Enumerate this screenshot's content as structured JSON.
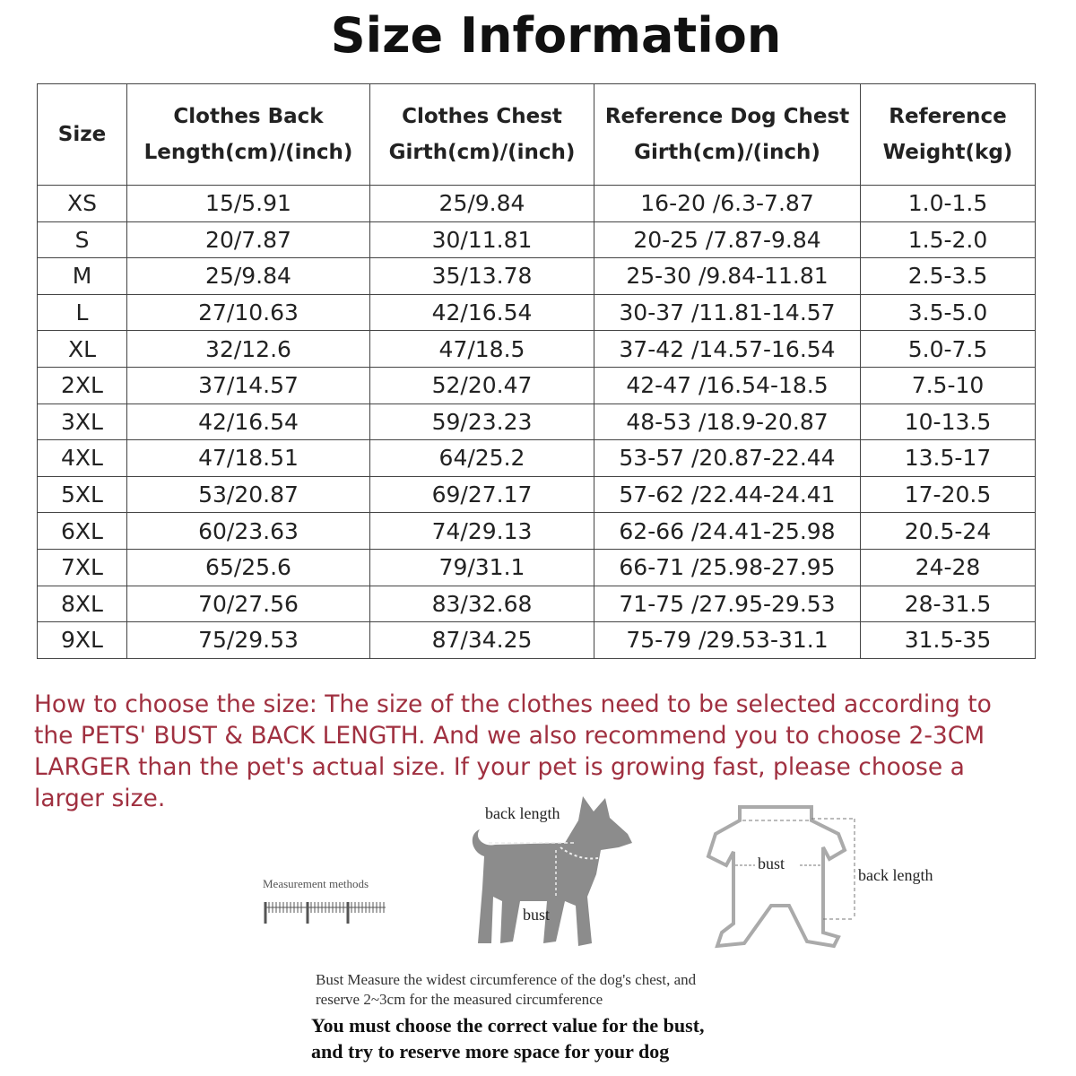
{
  "title": "Size Information",
  "table": {
    "headers": [
      [
        "Size"
      ],
      [
        "Clothes Back",
        "Length(cm)/(inch)"
      ],
      [
        "Clothes Chest",
        "Girth(cm)/(inch)"
      ],
      [
        "Reference Dog Chest",
        "Girth(cm)/(inch)"
      ],
      [
        "Reference",
        "Weight(kg)"
      ]
    ],
    "rows": [
      [
        "XS",
        "15/5.91",
        "25/9.84",
        "16-20 /6.3-7.87",
        "1.0-1.5"
      ],
      [
        "S",
        "20/7.87",
        "30/11.81",
        "20-25 /7.87-9.84",
        "1.5-2.0"
      ],
      [
        "M",
        "25/9.84",
        "35/13.78",
        "25-30 /9.84-11.81",
        "2.5-3.5"
      ],
      [
        "L",
        "27/10.63",
        "42/16.54",
        "30-37 /11.81-14.57",
        "3.5-5.0"
      ],
      [
        "XL",
        "32/12.6",
        "47/18.5",
        "37-42 /14.57-16.54",
        "5.0-7.5"
      ],
      [
        "2XL",
        "37/14.57",
        "52/20.47",
        "42-47 /16.54-18.5",
        "7.5-10"
      ],
      [
        "3XL",
        "42/16.54",
        "59/23.23",
        "48-53 /18.9-20.87",
        "10-13.5"
      ],
      [
        "4XL",
        "47/18.51",
        "64/25.2",
        "53-57 /20.87-22.44",
        "13.5-17"
      ],
      [
        "5XL",
        "53/20.87",
        "69/27.17",
        "57-62 /22.44-24.41",
        "17-20.5"
      ],
      [
        "6XL",
        "60/23.63",
        "74/29.13",
        "62-66 /24.41-25.98",
        "20.5-24"
      ],
      [
        "7XL",
        "65/25.6",
        "79/31.1",
        "66-71 /25.98-27.95",
        "24-28"
      ],
      [
        "8XL",
        "70/27.56",
        "83/32.68",
        "71-75 /27.95-29.53",
        "28-31.5"
      ],
      [
        "9XL",
        "75/29.53",
        "87/34.25",
        "75-79 /29.53-31.1",
        "31.5-35"
      ]
    ]
  },
  "note": "How to choose the size: The size of the clothes need to be selected according to the PETS' BUST & BACK LENGTH. And we also recommend you to choose 2-3CM LARGER than the pet's actual size. If your pet is growing fast, please choose a larger size.",
  "diagram": {
    "measurement_label": "Measurement methods",
    "dog_back_label": "back length",
    "dog_bust_label": "bust",
    "clothes_bust_label": "bust",
    "clothes_back_label": "back length",
    "instructions": [
      "Bust Measure the widest circumference of the dog's chest, and",
      "reserve 2~3cm for the measured circumference"
    ],
    "emphasis": [
      "You must choose the correct value for the bust,",
      "and try to reserve more space for your dog"
    ]
  }
}
